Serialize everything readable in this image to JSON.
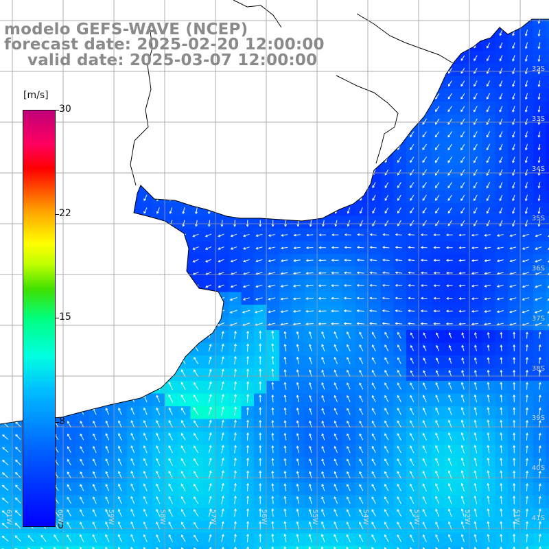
{
  "title": {
    "line1": "modelo GEFS-WAVE (NCEP)",
    "line2": "forecast date: 2025-02-20 12:00:00",
    "line3": "valid date: 2025-03-07 12:00:00"
  },
  "colorbar": {
    "unit": "[m/s]",
    "labels": [
      "30",
      "22",
      "15",
      "8",
      "0"
    ],
    "values": [
      30,
      22,
      15,
      8,
      0
    ],
    "min": 0,
    "max": 30
  },
  "lat_labels": [
    "32S",
    "33S",
    "34S",
    "35S",
    "36S",
    "37S",
    "38S",
    "39S",
    "40S",
    "41S"
  ],
  "lon_labels": [
    "61W",
    "60W",
    "59W",
    "58W",
    "57W",
    "56W",
    "55W",
    "54W",
    "53W",
    "52W",
    "51W"
  ],
  "colors": {
    "land": "#ffffff",
    "coast": "#000000",
    "grid": "#9a9a9a",
    "title": "#8a8a8a",
    "arrow": "#ffffff"
  }
}
